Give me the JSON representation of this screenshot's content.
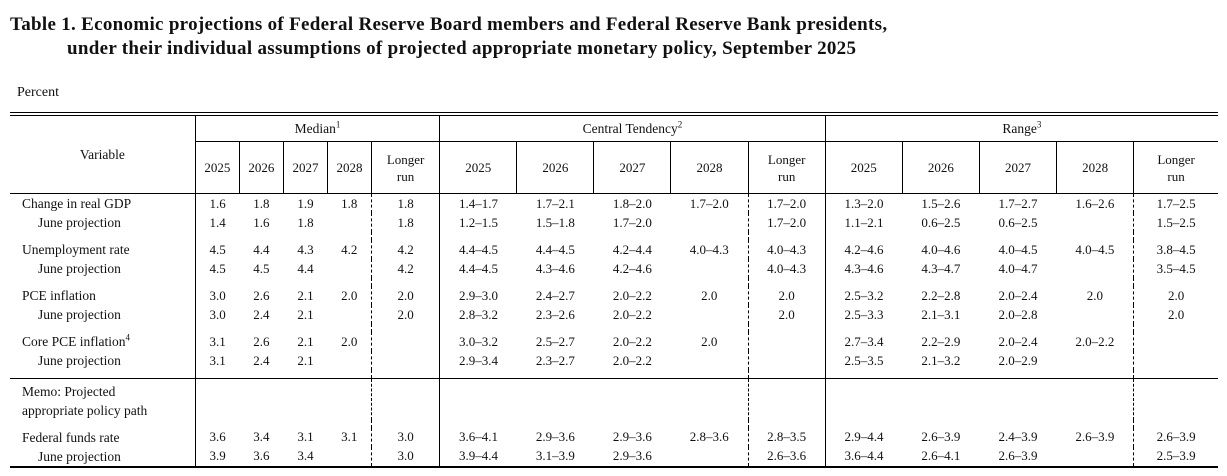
{
  "title": {
    "line1": "Table 1. Economic projections of Federal Reserve Board members and Federal Reserve Bank presidents,",
    "line2": "under their individual assumptions of projected appropriate monetary policy, September 2025"
  },
  "unit_label": "Percent",
  "table": {
    "variable_header": "Variable",
    "groups": [
      {
        "label": "Median",
        "footnote": "1"
      },
      {
        "label": "Central Tendency",
        "footnote": "2"
      },
      {
        "label": "Range",
        "footnote": "3"
      }
    ],
    "year_columns": [
      "2025",
      "2026",
      "2027",
      "2028",
      "Longer\nrun"
    ],
    "rows": [
      {
        "type": "data",
        "label": "Change in real GDP",
        "indent": false,
        "median": [
          "1.6",
          "1.8",
          "1.9",
          "1.8",
          "1.8"
        ],
        "central_tendency": [
          "1.4–1.7",
          "1.7–2.1",
          "1.8–2.0",
          "1.7–2.0",
          "1.7–2.0"
        ],
        "range": [
          "1.3–2.0",
          "1.5–2.6",
          "1.7–2.7",
          "1.6–2.6",
          "1.7–2.5"
        ]
      },
      {
        "type": "data",
        "label": "June projection",
        "indent": true,
        "median": [
          "1.4",
          "1.6",
          "1.8",
          "",
          "1.8"
        ],
        "central_tendency": [
          "1.2–1.5",
          "1.5–1.8",
          "1.7–2.0",
          "",
          "1.7–2.0"
        ],
        "range": [
          "1.1–2.1",
          "0.6–2.5",
          "0.6–2.5",
          "",
          "1.5–2.5"
        ]
      },
      {
        "type": "spacer"
      },
      {
        "type": "data",
        "label": "Unemployment rate",
        "indent": false,
        "median": [
          "4.5",
          "4.4",
          "4.3",
          "4.2",
          "4.2"
        ],
        "central_tendency": [
          "4.4–4.5",
          "4.4–4.5",
          "4.2–4.4",
          "4.0–4.3",
          "4.0–4.3"
        ],
        "range": [
          "4.2–4.6",
          "4.0–4.6",
          "4.0–4.5",
          "4.0–4.5",
          "3.8–4.5"
        ]
      },
      {
        "type": "data",
        "label": "June projection",
        "indent": true,
        "median": [
          "4.5",
          "4.5",
          "4.4",
          "",
          "4.2"
        ],
        "central_tendency": [
          "4.4–4.5",
          "4.3–4.6",
          "4.2–4.6",
          "",
          "4.0–4.3"
        ],
        "range": [
          "4.3–4.6",
          "4.3–4.7",
          "4.0–4.7",
          "",
          "3.5–4.5"
        ]
      },
      {
        "type": "spacer"
      },
      {
        "type": "data",
        "label": "PCE inflation",
        "indent": false,
        "median": [
          "3.0",
          "2.6",
          "2.1",
          "2.0",
          "2.0"
        ],
        "central_tendency": [
          "2.9–3.0",
          "2.4–2.7",
          "2.0–2.2",
          "2.0",
          "2.0"
        ],
        "range": [
          "2.5–3.2",
          "2.2–2.8",
          "2.0–2.4",
          "2.0",
          "2.0"
        ]
      },
      {
        "type": "data",
        "label": "June projection",
        "indent": true,
        "median": [
          "3.0",
          "2.4",
          "2.1",
          "",
          "2.0"
        ],
        "central_tendency": [
          "2.8–3.2",
          "2.3–2.6",
          "2.0–2.2",
          "",
          "2.0"
        ],
        "range": [
          "2.5–3.3",
          "2.1–3.1",
          "2.0–2.8",
          "",
          "2.0"
        ]
      },
      {
        "type": "spacer"
      },
      {
        "type": "data",
        "label": "Core PCE inflation",
        "footnote": "4",
        "indent": false,
        "median": [
          "3.1",
          "2.6",
          "2.1",
          "2.0",
          ""
        ],
        "central_tendency": [
          "3.0–3.2",
          "2.5–2.7",
          "2.0–2.2",
          "2.0",
          ""
        ],
        "range": [
          "2.7–3.4",
          "2.2–2.9",
          "2.0–2.4",
          "2.0–2.2",
          ""
        ]
      },
      {
        "type": "data",
        "label": "June projection",
        "indent": true,
        "median": [
          "3.1",
          "2.4",
          "2.1",
          "",
          ""
        ],
        "central_tendency": [
          "2.9–3.4",
          "2.3–2.7",
          "2.0–2.2",
          "",
          ""
        ],
        "range": [
          "2.5–3.5",
          "2.1–3.2",
          "2.0–2.9",
          "",
          ""
        ]
      },
      {
        "type": "spacer"
      },
      {
        "type": "memo",
        "label_lines": [
          "Memo: Projected",
          "appropriate policy path"
        ]
      },
      {
        "type": "spacer"
      },
      {
        "type": "data",
        "label": "Federal funds rate",
        "indent": false,
        "median": [
          "3.6",
          "3.4",
          "3.1",
          "3.1",
          "3.0"
        ],
        "central_tendency": [
          "3.6–4.1",
          "2.9–3.6",
          "2.9–3.6",
          "2.8–3.6",
          "2.8–3.5"
        ],
        "range": [
          "2.9–4.4",
          "2.6–3.9",
          "2.4–3.9",
          "2.6–3.9",
          "2.6–3.9"
        ]
      },
      {
        "type": "data",
        "label": "June projection",
        "indent": true,
        "median": [
          "3.9",
          "3.6",
          "3.4",
          "",
          "3.0"
        ],
        "central_tendency": [
          "3.9–4.4",
          "3.1–3.9",
          "2.9–3.6",
          "",
          "2.6–3.6"
        ],
        "range": [
          "3.6–4.4",
          "2.6–4.1",
          "2.6–3.9",
          "",
          "2.5–3.9"
        ]
      }
    ]
  },
  "colors": {
    "background": "#ffffff",
    "text": "#111111",
    "rule": "#000000"
  }
}
